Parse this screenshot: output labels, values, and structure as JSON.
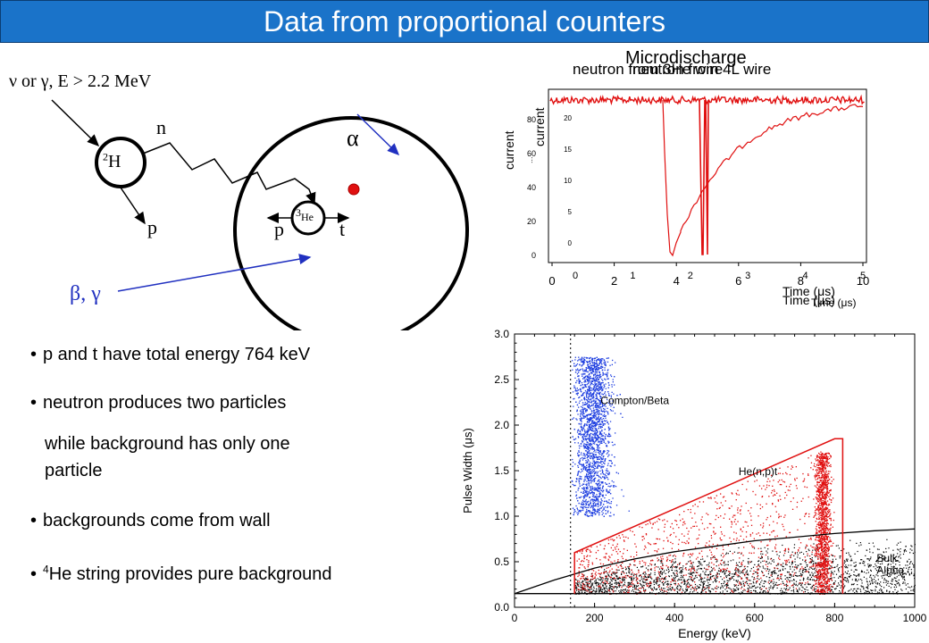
{
  "title": "Data from proportional counters",
  "diagram": {
    "incoming_label": "ν or γ, E > 2.2 MeV",
    "deuteron_sup": "2",
    "deuteron_sym": "H",
    "neutron_label": "n",
    "proton_label_left": "p",
    "he3_sup": "3",
    "he3_sym": "He",
    "proton_label_inside": "p",
    "triton_label": "t",
    "alpha_label": "α",
    "beta_gamma_label": "β, γ"
  },
  "bullets": [
    {
      "text": "p and t have total energy 764 keV"
    },
    {
      "text": "neutron produces two particles",
      "cont1": "while background has only one",
      "cont2": "particle"
    },
    {
      "text": "backgrounds come from wall"
    },
    {
      "sup": "4",
      "text": "He string provides pure background"
    }
  ],
  "trace_chart": {
    "title_overlap_1": "Microdischarge",
    "title_overlap_2": "neutron from 3He wire",
    "title_overlap_3": "neutron from 4L wire",
    "ylabel_1": "current",
    "ylabel_2": "current",
    "ylabel_dots": "...",
    "xlabel_1": "Time (μs)",
    "xlabel_2": "Time (μs)",
    "xlabel_3": "Time (μs)",
    "x_ticks_a": [
      "0",
      "2",
      "4",
      "6",
      "8",
      "10"
    ],
    "x_ticks_b": [
      "0",
      "1",
      "2",
      "3",
      "4",
      "5"
    ],
    "y_ticks_a": [
      "0",
      "20",
      "40",
      "60",
      "80"
    ],
    "y_ticks_b": [
      "0",
      "5",
      "10",
      "15",
      "20"
    ]
  },
  "chart_data": {
    "type": "scatter",
    "xlabel": "Energy (keV)",
    "ylabel": "Pulse Width (μs)",
    "xlim": [
      0,
      1000
    ],
    "ylim": [
      0,
      3.0
    ],
    "x_ticks": [
      "0",
      "200",
      "400",
      "600",
      "800",
      "1000"
    ],
    "y_ticks": [
      "0.0",
      "0.5",
      "1.0",
      "1.5",
      "2.0",
      "2.5",
      "3.0"
    ],
    "threshold_energy": 140,
    "region_box": [
      [
        150,
        0.15
      ],
      [
        150,
        0.6
      ],
      [
        800,
        1.85
      ],
      [
        820,
        1.85
      ],
      [
        820,
        0.15
      ]
    ],
    "alpha_curve": [
      [
        0,
        0.15
      ],
      [
        100,
        0.3
      ],
      [
        200,
        0.43
      ],
      [
        300,
        0.53
      ],
      [
        400,
        0.61
      ],
      [
        500,
        0.67
      ],
      [
        600,
        0.73
      ],
      [
        700,
        0.77
      ],
      [
        800,
        0.81
      ],
      [
        900,
        0.84
      ],
      [
        1000,
        0.86
      ]
    ],
    "baseline": 0.15,
    "annotations": [
      {
        "text": "Compton/Beta",
        "x": 215,
        "y": 2.23
      },
      {
        "text": "He(n,p)t",
        "x": 560,
        "y": 1.45
      },
      {
        "text": "Bulk",
        "x": 905,
        "y": 0.5
      },
      {
        "text": "Alpha",
        "x": 905,
        "y": 0.37
      }
    ],
    "series": [
      {
        "name": "Compton/Beta",
        "color": "#2040e0",
        "x_center": 195,
        "x_spread": 55,
        "y_min": 1.0,
        "y_max": 2.75,
        "count": 2600
      },
      {
        "name": "He(n,p)t",
        "color": "#e01010",
        "peak_x": 770,
        "count": 2400
      },
      {
        "name": "Bulk Alpha",
        "color": "#000000",
        "count": 2200
      }
    ]
  },
  "colors": {
    "title_bg": "#1a73c9",
    "blue": "#2040e0",
    "red": "#e01010",
    "arrow_blue": "#2030c0"
  }
}
